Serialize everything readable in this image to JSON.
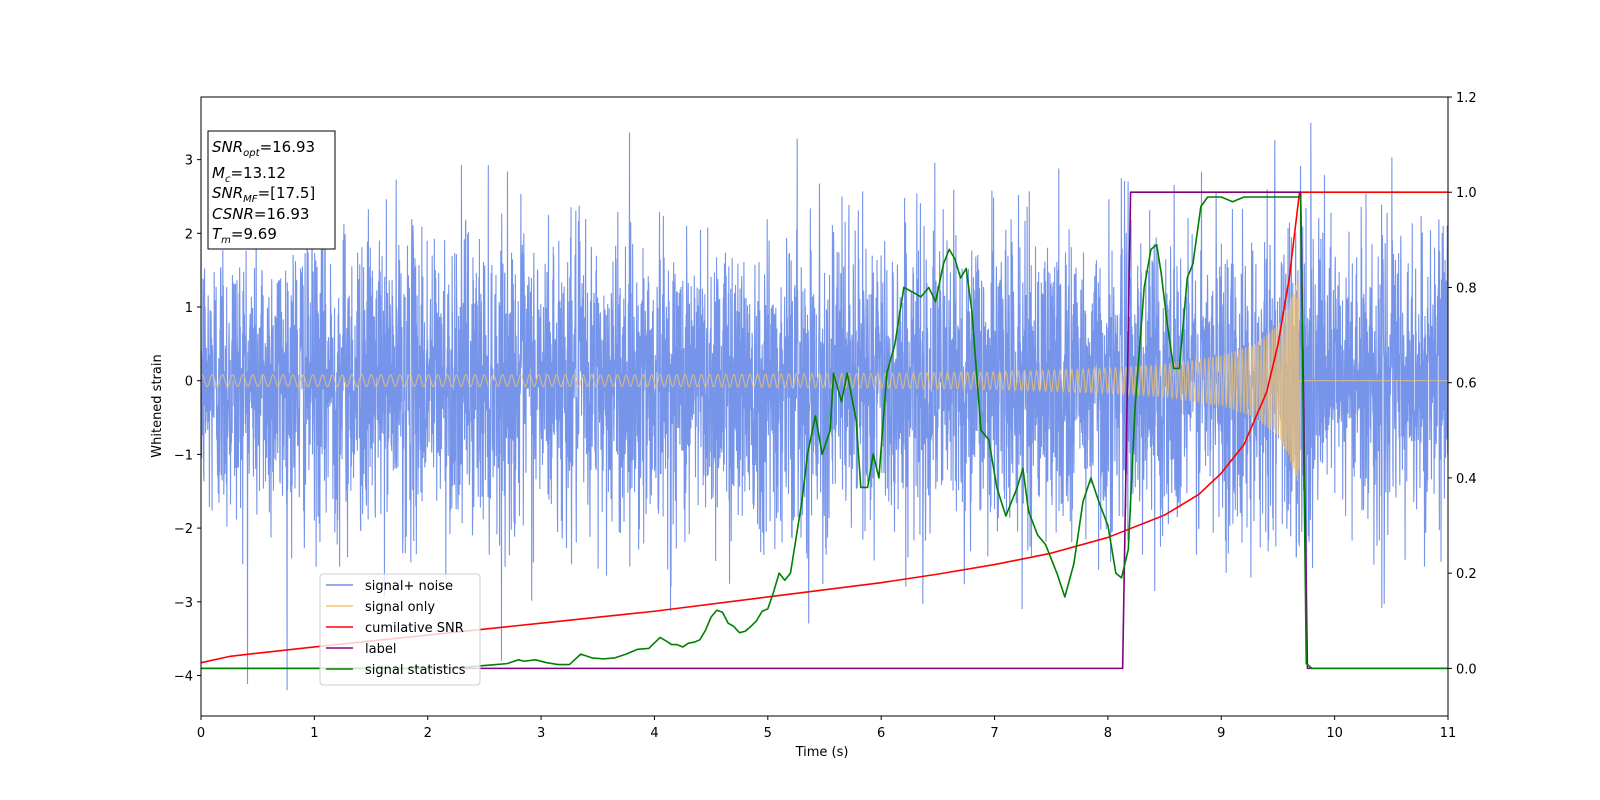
{
  "chart_data": {
    "type": "line",
    "xlabel": "Time (s)",
    "ylabel": "Whitened strain",
    "xlim": [
      0,
      11
    ],
    "ylim_left": [
      -4.55,
      3.85
    ],
    "ylim_right": [
      -0.1,
      1.2
    ],
    "x_ticks": [
      "0",
      "1",
      "2",
      "3",
      "4",
      "5",
      "6",
      "7",
      "8",
      "9",
      "10",
      "11"
    ],
    "y_left_ticks": [
      "3",
      "2",
      "1",
      "0",
      "−1",
      "−2",
      "−3",
      "−4"
    ],
    "y_right_ticks": [
      "1.2",
      "1.0",
      "0.8",
      "0.6",
      "0.4",
      "0.2",
      "0.0"
    ],
    "info_box": {
      "snr_opt": {
        "main": "SNR",
        "sub": "opt",
        "value": "=16.93"
      },
      "mc": {
        "main": "M",
        "sub": "c",
        "value": "=13.12"
      },
      "snr_mf": {
        "main": "SNR",
        "sub": "MF",
        "value": "=[17.5]"
      },
      "csnr": {
        "main": "CSNR",
        "value": "=16.93"
      },
      "tm": {
        "main": "T",
        "sub": "m",
        "value": "=9.69"
      }
    },
    "legend_position": "lower-left",
    "series": [
      {
        "name": "signal+ noise",
        "axis": "left",
        "color": "#6f8ee8",
        "style": "dense noise, sigma about 1, range about -4.2 to 3.5",
        "sigma": 1.0
      },
      {
        "name": "signal only",
        "axis": "left",
        "color": "#f5c46c",
        "style": "chirp oscillation growing in amplitude, ending at merger",
        "t_merger": 9.69,
        "chirp_envelope": {
          "t": [
            0,
            2,
            4,
            6,
            7,
            8,
            8.5,
            9,
            9.3,
            9.5,
            9.6,
            9.69
          ],
          "a": [
            0.08,
            0.08,
            0.08,
            0.1,
            0.12,
            0.17,
            0.22,
            0.34,
            0.5,
            0.75,
            1.05,
            1.45
          ]
        }
      },
      {
        "name": "cumilative SNR",
        "axis": "right",
        "color": "#ff0000",
        "x": [
          0,
          0.25,
          0.5,
          1,
          2,
          3,
          4,
          5,
          6,
          6.5,
          7,
          7.5,
          8,
          8.5,
          8.8,
          9,
          9.2,
          9.4,
          9.5,
          9.6,
          9.65,
          9.69,
          11
        ],
        "y": [
          0.012,
          0.025,
          0.032,
          0.045,
          0.07,
          0.095,
          0.12,
          0.15,
          0.18,
          0.198,
          0.218,
          0.242,
          0.275,
          0.322,
          0.365,
          0.41,
          0.47,
          0.58,
          0.68,
          0.82,
          0.92,
          1.0,
          1.0
        ]
      },
      {
        "name": "label",
        "axis": "right",
        "color": "#800080",
        "x": [
          0,
          8.13,
          8.2,
          9.7,
          9.76,
          11
        ],
        "y": [
          0,
          0,
          1,
          1,
          0,
          0
        ]
      },
      {
        "name": "signal statistics",
        "axis": "right",
        "color": "#008000",
        "x": [
          0,
          2.0,
          2.3,
          2.6,
          2.7,
          2.8,
          2.85,
          2.95,
          3.05,
          3.15,
          3.25,
          3.35,
          3.45,
          3.55,
          3.65,
          3.75,
          3.85,
          3.95,
          4.05,
          4.1,
          4.15,
          4.2,
          4.25,
          4.3,
          4.35,
          4.4,
          4.45,
          4.5,
          4.55,
          4.6,
          4.65,
          4.7,
          4.75,
          4.8,
          4.85,
          4.9,
          4.95,
          5.0,
          5.05,
          5.1,
          5.15,
          5.2,
          5.3,
          5.35,
          5.42,
          5.48,
          5.55,
          5.58,
          5.65,
          5.7,
          5.78,
          5.82,
          5.88,
          5.93,
          5.98,
          6.05,
          6.12,
          6.2,
          6.28,
          6.35,
          6.42,
          6.48,
          6.55,
          6.6,
          6.65,
          6.7,
          6.75,
          6.8,
          6.88,
          6.95,
          7.02,
          7.1,
          7.15,
          7.2,
          7.25,
          7.3,
          7.38,
          7.45,
          7.55,
          7.62,
          7.7,
          7.78,
          7.85,
          7.92,
          8.0,
          8.07,
          8.12,
          8.18,
          8.24,
          8.32,
          8.38,
          8.43,
          8.47,
          8.52,
          8.58,
          8.63,
          8.7,
          8.75,
          8.82,
          8.88,
          8.94,
          9.0,
          9.1,
          9.2,
          9.3,
          9.4,
          9.5,
          9.6,
          9.65,
          9.7,
          9.75,
          9.8,
          11
        ],
        "y": [
          0,
          0.0,
          0.002,
          0.008,
          0.01,
          0.018,
          0.015,
          0.018,
          0.012,
          0.008,
          0.008,
          0.03,
          0.022,
          0.02,
          0.022,
          0.03,
          0.04,
          0.042,
          0.065,
          0.058,
          0.05,
          0.05,
          0.045,
          0.053,
          0.055,
          0.06,
          0.08,
          0.108,
          0.122,
          0.118,
          0.095,
          0.088,
          0.075,
          0.078,
          0.088,
          0.1,
          0.12,
          0.125,
          0.16,
          0.2,
          0.185,
          0.2,
          0.35,
          0.45,
          0.53,
          0.45,
          0.5,
          0.62,
          0.56,
          0.62,
          0.52,
          0.38,
          0.38,
          0.45,
          0.4,
          0.62,
          0.68,
          0.8,
          0.79,
          0.78,
          0.8,
          0.77,
          0.85,
          0.88,
          0.86,
          0.82,
          0.84,
          0.75,
          0.5,
          0.48,
          0.38,
          0.32,
          0.35,
          0.38,
          0.42,
          0.33,
          0.28,
          0.26,
          0.2,
          0.15,
          0.22,
          0.35,
          0.4,
          0.35,
          0.3,
          0.2,
          0.19,
          0.25,
          0.55,
          0.8,
          0.88,
          0.89,
          0.83,
          0.73,
          0.63,
          0.63,
          0.82,
          0.85,
          0.97,
          0.99,
          0.99,
          0.99,
          0.98,
          0.99,
          0.99,
          0.99,
          0.99,
          0.99,
          0.99,
          0.99,
          0.01,
          0.0,
          0.0
        ]
      }
    ]
  }
}
